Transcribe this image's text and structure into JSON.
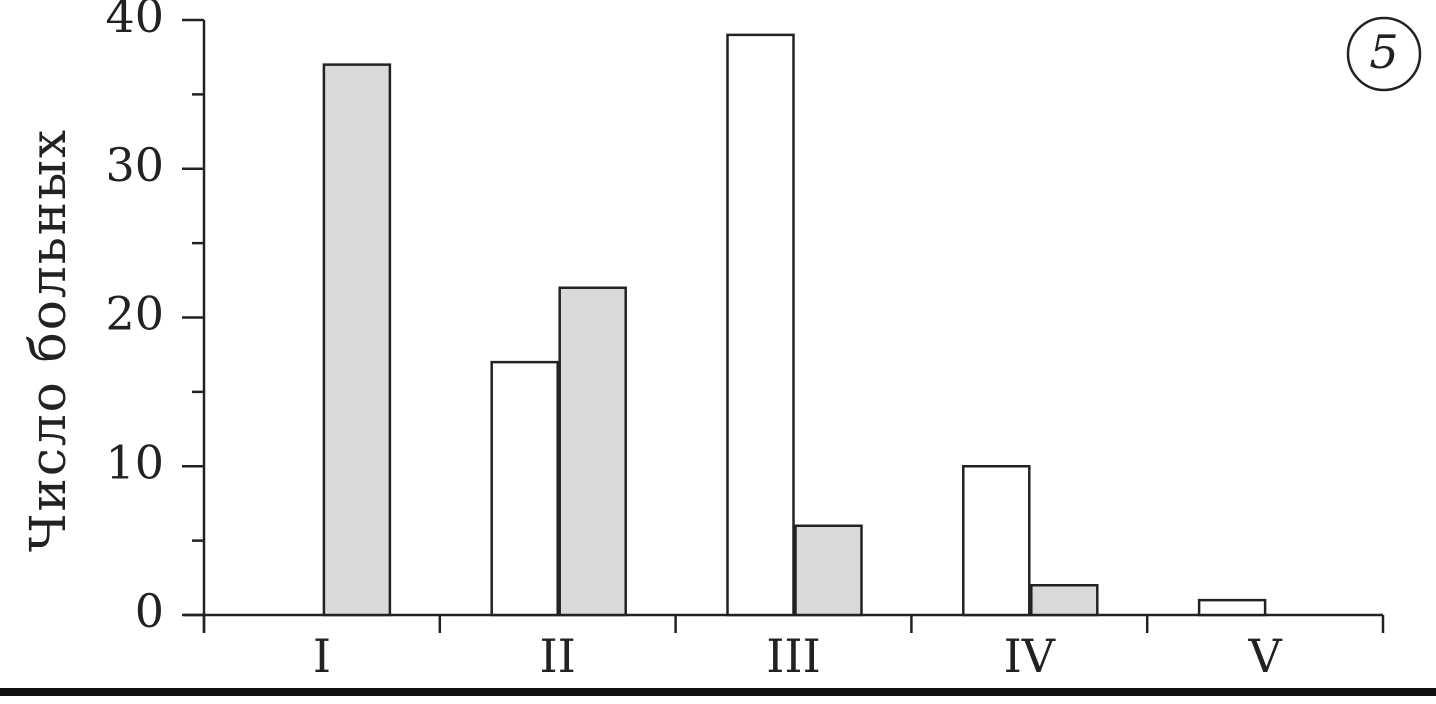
{
  "chart_data": {
    "type": "bar",
    "y_label": "Число больных",
    "annotation": "5",
    "categories": [
      "I",
      "II",
      "III",
      "IV",
      "V"
    ],
    "series": [
      {
        "color": "#ffffff",
        "values": [
          0,
          17,
          39,
          10,
          1
        ]
      },
      {
        "color": "#d9d9d9",
        "values": [
          37,
          22,
          6,
          2,
          0
        ]
      }
    ],
    "ylim": [
      0,
      40
    ],
    "yticks": [
      0,
      10,
      20,
      30,
      40
    ],
    "yticks_minor": [
      5,
      15,
      25,
      35
    ],
    "grid": false
  }
}
